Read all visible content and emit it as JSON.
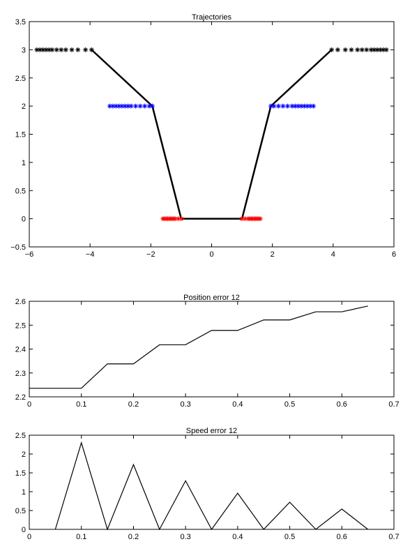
{
  "chart_data": [
    {
      "type": "line",
      "title": "Trajectories",
      "xlabel": "",
      "ylabel": "",
      "xlim": [
        -6,
        6
      ],
      "ylim": [
        -0.5,
        3.5
      ],
      "x_ticks": [
        -6,
        -4,
        -2,
        0,
        2,
        4,
        6
      ],
      "y_ticks": [
        -0.5,
        0,
        0.5,
        1,
        1.5,
        2,
        2.5,
        3,
        3.5
      ],
      "x_tick_labels": [
        "−6",
        "−4",
        "−2",
        "0",
        "2",
        "4",
        "6"
      ],
      "y_tick_labels": [
        "−0.5",
        "0",
        "0.5",
        "1",
        "1.5",
        "2",
        "2.5",
        "3",
        "3.5"
      ],
      "grid": false,
      "series": [
        {
          "color": "#000000",
          "style": "line",
          "x": [
            -3.95,
            -1.95,
            -1.0,
            1.0,
            1.95,
            3.95
          ],
          "y": [
            3,
            2,
            0,
            0,
            2,
            3
          ]
        },
        {
          "color": "#000000",
          "style": "star-markers",
          "x": [
            -5.75,
            -5.65,
            -5.55,
            -5.45,
            -5.35,
            -5.25,
            -5.1,
            -4.95,
            -4.8,
            -4.6,
            -4.4,
            -4.15,
            -3.95,
            3.95,
            4.15,
            4.4,
            4.6,
            4.8,
            4.95,
            5.1,
            5.25,
            5.35,
            5.45,
            5.55,
            5.65,
            5.75
          ],
          "y": [
            3,
            3,
            3,
            3,
            3,
            3,
            3,
            3,
            3,
            3,
            3,
            3,
            3,
            3,
            3,
            3,
            3,
            3,
            3,
            3,
            3,
            3,
            3,
            3,
            3,
            3
          ]
        },
        {
          "color": "#0000ff",
          "style": "star-markers",
          "x": [
            -3.35,
            -3.25,
            -3.15,
            -3.05,
            -2.95,
            -2.85,
            -2.75,
            -2.65,
            -2.5,
            -2.35,
            -2.2,
            -2.05,
            -1.95,
            1.95,
            2.05,
            2.2,
            2.35,
            2.5,
            2.65,
            2.75,
            2.85,
            2.95,
            3.05,
            3.15,
            3.25,
            3.35
          ],
          "y": [
            2,
            2,
            2,
            2,
            2,
            2,
            2,
            2,
            2,
            2,
            2,
            2,
            2,
            2,
            2,
            2,
            2,
            2,
            2,
            2,
            2,
            2,
            2,
            2,
            2,
            2
          ]
        },
        {
          "color": "#ff0000",
          "style": "star-markers",
          "x": [
            -1.6,
            -1.55,
            -1.5,
            -1.45,
            -1.4,
            -1.35,
            -1.3,
            -1.25,
            -1.2,
            -1.1,
            -1.0,
            1.0,
            1.1,
            1.2,
            1.25,
            1.3,
            1.35,
            1.4,
            1.45,
            1.5,
            1.55,
            1.6
          ],
          "y": [
            0,
            0,
            0,
            0,
            0,
            0,
            0,
            0,
            0,
            0,
            0,
            0,
            0,
            0,
            0,
            0,
            0,
            0,
            0,
            0,
            0,
            0
          ]
        }
      ]
    },
    {
      "type": "line",
      "title": "Position error 12",
      "xlabel": "",
      "ylabel": "",
      "xlim": [
        0,
        0.7
      ],
      "ylim": [
        2.2,
        2.6
      ],
      "x_ticks": [
        0,
        0.1,
        0.2,
        0.3,
        0.4,
        0.5,
        0.6,
        0.7
      ],
      "y_ticks": [
        2.2,
        2.3,
        2.4,
        2.5,
        2.6
      ],
      "x_tick_labels": [
        "0",
        "0.1",
        "0.2",
        "0.3",
        "0.4",
        "0.5",
        "0.6",
        "0.7"
      ],
      "y_tick_labels": [
        "2.2",
        "2.3",
        "2.4",
        "2.5",
        "2.6"
      ],
      "grid": false,
      "series": [
        {
          "color": "#000000",
          "style": "line",
          "x": [
            0,
            0.1,
            0.15,
            0.2,
            0.25,
            0.3,
            0.35,
            0.4,
            0.45,
            0.5,
            0.55,
            0.6,
            0.65
          ],
          "y": [
            2.236,
            2.236,
            2.338,
            2.338,
            2.418,
            2.418,
            2.478,
            2.478,
            2.522,
            2.522,
            2.556,
            2.556,
            2.58
          ]
        }
      ]
    },
    {
      "type": "line",
      "title": "Speed error 12",
      "xlabel": "",
      "ylabel": "",
      "xlim": [
        0,
        0.7
      ],
      "ylim": [
        0,
        2.5
      ],
      "x_ticks": [
        0,
        0.1,
        0.2,
        0.3,
        0.4,
        0.5,
        0.6,
        0.7
      ],
      "y_ticks": [
        0,
        0.5,
        1,
        1.5,
        2,
        2.5
      ],
      "x_tick_labels": [
        "0",
        "0.1",
        "0.2",
        "0.3",
        "0.4",
        "0.5",
        "0.6",
        "0.7"
      ],
      "y_tick_labels": [
        "0",
        "0.5",
        "1",
        "1.5",
        "2",
        "2.5"
      ],
      "grid": false,
      "series": [
        {
          "color": "#000000",
          "style": "line",
          "x": [
            0.05,
            0.1,
            0.15,
            0.2,
            0.25,
            0.3,
            0.35,
            0.4,
            0.45,
            0.5,
            0.55,
            0.6,
            0.65
          ],
          "y": [
            0,
            2.3,
            0,
            1.72,
            0,
            1.29,
            0,
            0.96,
            0,
            0.72,
            0,
            0.54,
            0
          ]
        }
      ]
    }
  ]
}
